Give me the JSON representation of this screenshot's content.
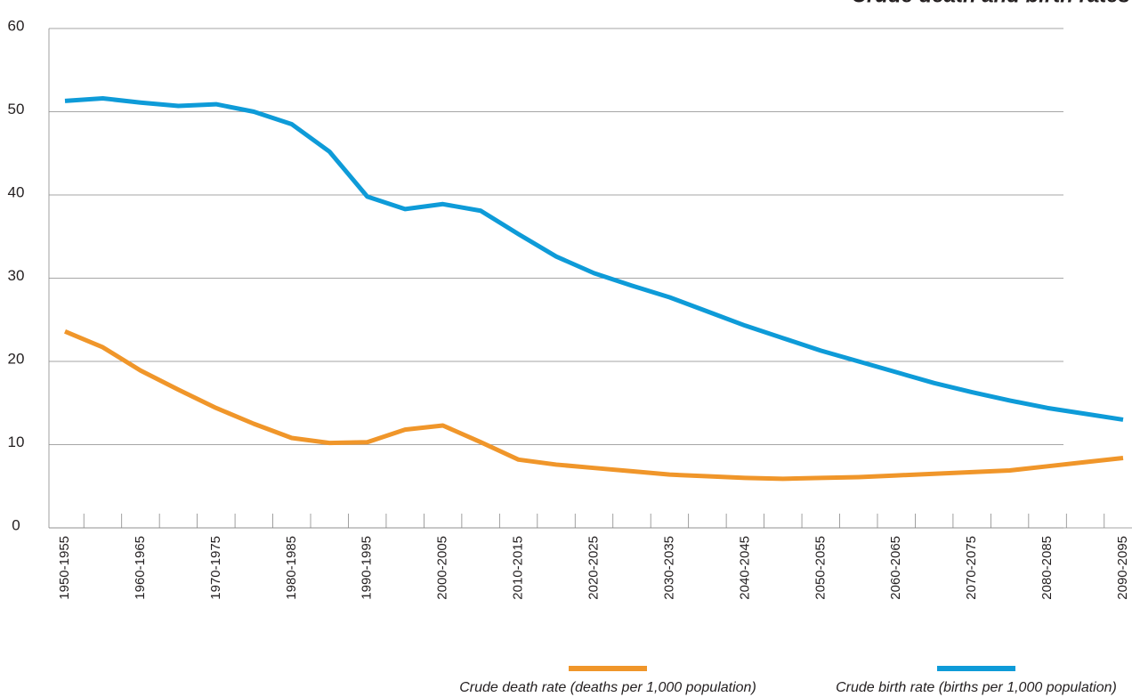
{
  "chart_data": {
    "type": "line",
    "title": "Crude death and birth rates",
    "categories": [
      "1950-1955",
      null,
      "1960-1965",
      null,
      "1970-1975",
      null,
      "1980-1985",
      null,
      "1990-1995",
      null,
      "2000-2005",
      null,
      "2010-2015",
      null,
      "2020-2025",
      null,
      "2030-2035",
      null,
      "2040-2045",
      null,
      "2050-2055",
      null,
      "2060-2065",
      null,
      "2070-2075",
      null,
      "2080-2085",
      null,
      "2090-2095"
    ],
    "series": [
      {
        "name": "Crude death rate (deaths per 1,000 population)",
        "color": "#f0962a",
        "values": [
          23.6,
          21.7,
          18.9,
          16.6,
          14.4,
          12.5,
          10.8,
          10.2,
          10.3,
          11.8,
          12.3,
          10.3,
          8.2,
          7.6,
          7.2,
          6.8,
          6.4,
          6.2,
          6.0,
          5.9,
          6.0,
          6.1,
          6.3,
          6.5,
          6.7,
          6.9,
          7.4,
          7.9,
          8.4
        ]
      },
      {
        "name": "Crude birth rate (births per 1,000 population)",
        "color": "#0e9bd8",
        "values": [
          51.3,
          51.6,
          51.1,
          50.7,
          50.9,
          50.0,
          48.5,
          45.2,
          39.8,
          38.3,
          38.9,
          38.1,
          35.3,
          32.6,
          30.6,
          29.1,
          27.7,
          26.0,
          24.3,
          22.8,
          21.3,
          20.0,
          18.7,
          17.4,
          16.3,
          15.3,
          14.4,
          13.7,
          13.0
        ]
      }
    ],
    "ylim": [
      0,
      60
    ],
    "yticks": [
      0,
      10,
      20,
      30,
      40,
      50,
      60
    ],
    "grid": true,
    "legend": "bottom"
  }
}
